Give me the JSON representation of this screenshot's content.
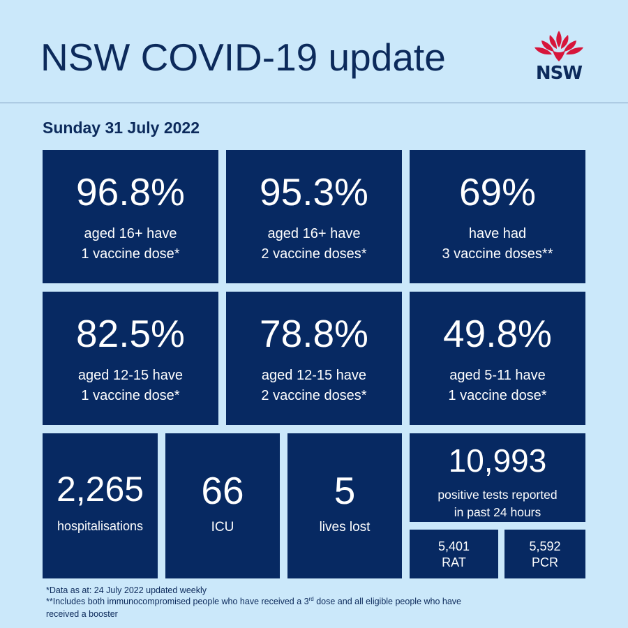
{
  "header": {
    "title": "NSW COVID-19 update",
    "logo_text": "NSW"
  },
  "date": "Sunday 31 July 2022",
  "vaccination": [
    {
      "value": "96.8%",
      "line1": "aged 16+ have",
      "line2": "1 vaccine dose*"
    },
    {
      "value": "95.3%",
      "line1": "aged 16+ have",
      "line2": "2 vaccine doses*"
    },
    {
      "value": "69%",
      "line1": "have had",
      "line2": "3 vaccine doses**"
    },
    {
      "value": "82.5%",
      "line1": "aged 12-15 have",
      "line2": "1 vaccine dose*"
    },
    {
      "value": "78.8%",
      "line1": "aged 12-15 have",
      "line2": "2 vaccine doses*"
    },
    {
      "value": "49.8%",
      "line1": "aged 5-11 have",
      "line2": "1 vaccine dose*"
    }
  ],
  "stats": {
    "hospitalisations": {
      "value": "2,265",
      "label": "hospitalisations"
    },
    "icu": {
      "value": "66",
      "label": "ICU"
    },
    "lives_lost": {
      "value": "5",
      "label": "lives lost"
    },
    "positive_tests": {
      "value": "10,993",
      "line1": "positive tests reported",
      "line2": "in past 24 hours"
    },
    "rat": {
      "value": "5,401",
      "label": "RAT"
    },
    "pcr": {
      "value": "5,592",
      "label": "PCR"
    }
  },
  "footnotes": {
    "note1": "*Data as at: 24 July 2022 updated weekly",
    "note2_before": "**Includes both immunocompromised people who have received a 3",
    "note2_sup": "rd",
    "note2_after": " dose and all eligible people who have",
    "note2_line2": "received a booster"
  },
  "colors": {
    "background": "#cbe8fa",
    "tile": "#072962",
    "heading": "#0c2a5b",
    "logo_red": "#d7153a"
  },
  "icons": {
    "logo": "nsw-waratah-logo"
  }
}
